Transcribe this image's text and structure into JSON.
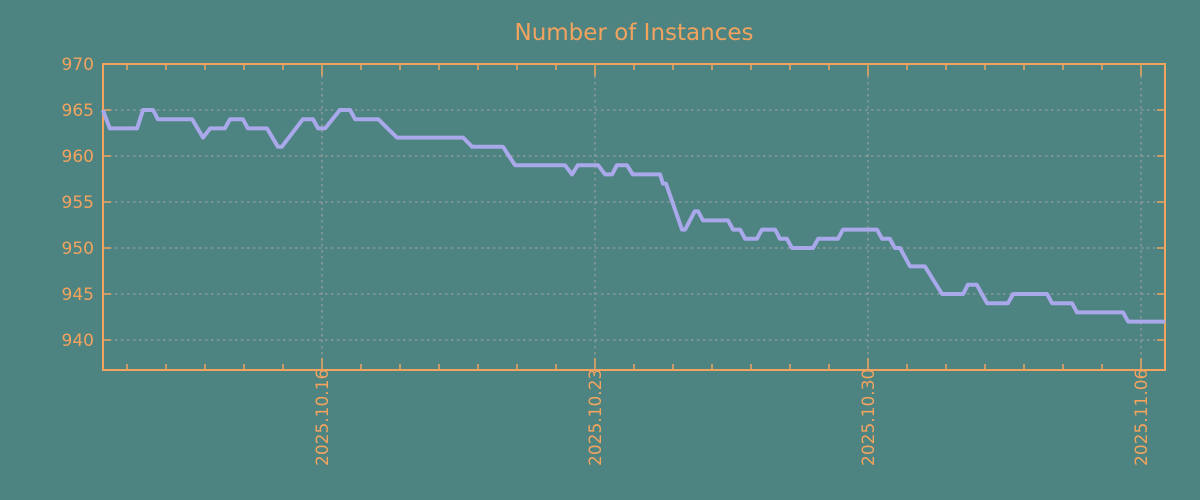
{
  "page": {
    "background_color": "#4d8380"
  },
  "chart_data": {
    "type": "line",
    "title": "Number of Instances",
    "legend": null,
    "grid": {
      "show": true,
      "color": "#a6a6a6",
      "style": "dashed"
    },
    "axis_color": "#f2a45f",
    "text_color": "#f2a45f",
    "x_axis": {
      "unit": "days relative to 2025.10.16",
      "range": [
        -5.62,
        21.62
      ],
      "major_ticks": [
        {
          "d": 0,
          "label": "2025.10.16"
        },
        {
          "d": 7,
          "label": "2025.10.23"
        },
        {
          "d": 14,
          "label": "2025.10.30"
        },
        {
          "d": 21,
          "label": "2025.11.06"
        }
      ],
      "minor_tick_interval_days": 1,
      "minor_tick_start": -5,
      "minor_tick_end": 21
    },
    "y_axis": {
      "range": [
        936.7,
        970
      ],
      "ticks": [
        940,
        945,
        950,
        955,
        960,
        965,
        970
      ]
    },
    "series": [
      {
        "name": "instances",
        "color": "#a8a8ea",
        "points": [
          [
            -5.62,
            965
          ],
          [
            -5.44,
            963
          ],
          [
            -4.74,
            963
          ],
          [
            -4.59,
            965
          ],
          [
            -4.33,
            965
          ],
          [
            -4.21,
            964
          ],
          [
            -3.33,
            964
          ],
          [
            -3.05,
            962
          ],
          [
            -2.87,
            963
          ],
          [
            -2.49,
            963
          ],
          [
            -2.36,
            964
          ],
          [
            -2.03,
            964
          ],
          [
            -1.9,
            963
          ],
          [
            -1.41,
            963
          ],
          [
            -1.13,
            961
          ],
          [
            -1.03,
            961
          ],
          [
            -0.49,
            964
          ],
          [
            -0.23,
            964
          ],
          [
            -0.1,
            963
          ],
          [
            0.08,
            963
          ],
          [
            0.46,
            965
          ],
          [
            0.72,
            965
          ],
          [
            0.85,
            964
          ],
          [
            1.44,
            964
          ],
          [
            1.92,
            962
          ],
          [
            3.62,
            962
          ],
          [
            3.85,
            961
          ],
          [
            4.64,
            961
          ],
          [
            4.95,
            959
          ],
          [
            6.23,
            959
          ],
          [
            6.41,
            958
          ],
          [
            6.56,
            959
          ],
          [
            7.08,
            959
          ],
          [
            7.26,
            958
          ],
          [
            7.44,
            958
          ],
          [
            7.56,
            959
          ],
          [
            7.82,
            959
          ],
          [
            7.97,
            958
          ],
          [
            8.67,
            958
          ],
          [
            8.74,
            957
          ],
          [
            8.82,
            957
          ],
          [
            9.23,
            952
          ],
          [
            9.31,
            952
          ],
          [
            9.56,
            954
          ],
          [
            9.64,
            954
          ],
          [
            9.77,
            953
          ],
          [
            10.41,
            953
          ],
          [
            10.54,
            952
          ],
          [
            10.72,
            952
          ],
          [
            10.85,
            951
          ],
          [
            11.15,
            951
          ],
          [
            11.28,
            952
          ],
          [
            11.62,
            952
          ],
          [
            11.74,
            951
          ],
          [
            11.92,
            951
          ],
          [
            12.05,
            950
          ],
          [
            12.59,
            950
          ],
          [
            12.72,
            951
          ],
          [
            13.23,
            951
          ],
          [
            13.36,
            952
          ],
          [
            14.23,
            952
          ],
          [
            14.36,
            951
          ],
          [
            14.56,
            951
          ],
          [
            14.69,
            950
          ],
          [
            14.82,
            950
          ],
          [
            15.08,
            948
          ],
          [
            15.46,
            948
          ],
          [
            15.9,
            945
          ],
          [
            16.44,
            945
          ],
          [
            16.56,
            946
          ],
          [
            16.79,
            946
          ],
          [
            16.92,
            945
          ],
          [
            17.05,
            944
          ],
          [
            17.59,
            944
          ],
          [
            17.72,
            945
          ],
          [
            18.59,
            945
          ],
          [
            18.72,
            944
          ],
          [
            19.23,
            944
          ],
          [
            19.36,
            943
          ],
          [
            20.54,
            943
          ],
          [
            20.67,
            942
          ],
          [
            21.62,
            942
          ]
        ]
      }
    ]
  }
}
